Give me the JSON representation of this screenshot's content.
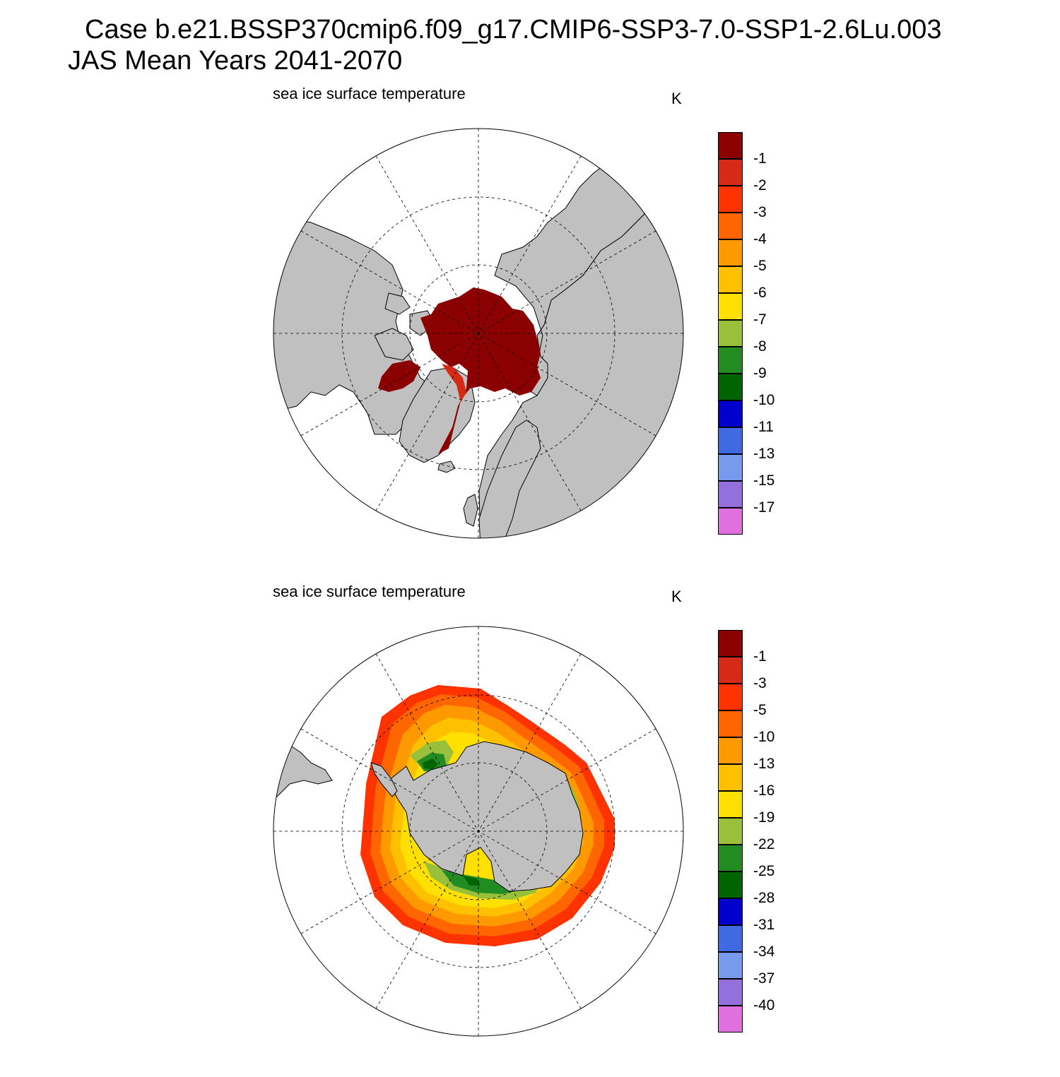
{
  "figure": {
    "title_line1": "Case b.e21.BSSP370cmip6.f09_g17.CMIP6-SSP3-7.0-SSP1-2.6Lu.003",
    "title_line2": "JAS Mean   Years 2041-2070"
  },
  "panels": [
    {
      "id": "north",
      "hemisphere": "Northern Hemisphere polar stereographic",
      "title": "sea ice surface temperature",
      "unit": "K",
      "colorbar": {
        "labels": [
          "-1",
          "-2",
          "-3",
          "-4",
          "-5",
          "-6",
          "-7",
          "-8",
          "-9",
          "-10",
          "-11",
          "-13",
          "-15",
          "-17"
        ],
        "colors": [
          "#8b0000",
          "#d42a16",
          "#ff3300",
          "#ff6600",
          "#ff9900",
          "#ffc000",
          "#ffe000",
          "#99c03a",
          "#228b22",
          "#006400",
          "#0000cd",
          "#4169e1",
          "#7799ee",
          "#9370db",
          "#e070e0"
        ]
      },
      "map": {
        "land_color": "#c0c0c0",
        "ocean_color": "#ffffff",
        "dominant_ice_value_range": "> -1",
        "marginal_ice_value_range": "-1 to -2"
      }
    },
    {
      "id": "south",
      "hemisphere": "Southern Hemisphere polar stereographic",
      "title": "sea ice surface temperature",
      "unit": "K",
      "colorbar": {
        "labels": [
          "-1",
          "-3",
          "-5",
          "-10",
          "-13",
          "-16",
          "-19",
          "-22",
          "-25",
          "-28",
          "-31",
          "-34",
          "-37",
          "-40"
        ],
        "colors": [
          "#8b0000",
          "#d42a16",
          "#ff3300",
          "#ff6600",
          "#ff9900",
          "#ffc000",
          "#ffe000",
          "#99c03a",
          "#228b22",
          "#006400",
          "#0000cd",
          "#4169e1",
          "#7799ee",
          "#9370db",
          "#e070e0"
        ]
      },
      "map": {
        "land_color": "#c0c0c0",
        "ocean_color": "#ffffff",
        "ice_ring_bands_outer_to_inner": [
          "-5 to -10",
          "-10 to -13",
          "-13 to -16",
          "-16 to -19",
          "-19 to -22",
          "-22 to -25",
          "-25 to -28"
        ]
      }
    }
  ]
}
